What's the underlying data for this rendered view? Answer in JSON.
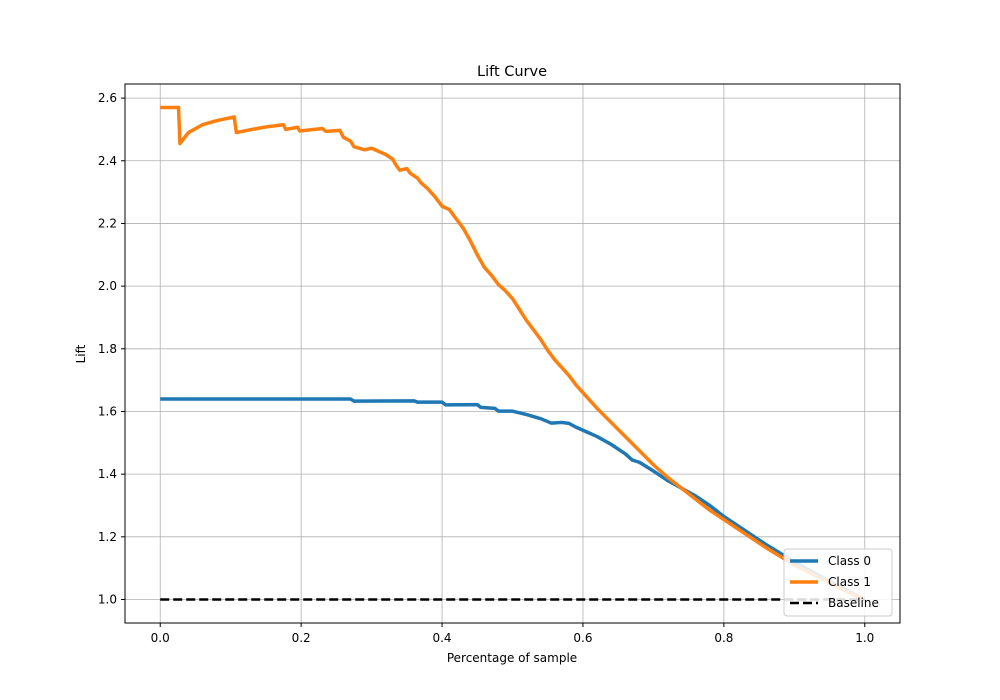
{
  "chart_data": {
    "type": "line",
    "title": "Lift Curve",
    "xlabel": "Percentage of sample",
    "ylabel": "Lift",
    "xlim": [
      -0.05,
      1.05
    ],
    "ylim": [
      0.925,
      2.645
    ],
    "xticks": [
      0.0,
      0.2,
      0.4,
      0.6,
      0.8,
      1.0
    ],
    "xtick_labels": [
      "0.0",
      "0.2",
      "0.4",
      "0.6",
      "0.8",
      "1.0"
    ],
    "yticks": [
      1.0,
      1.2,
      1.4,
      1.6,
      1.8,
      2.0,
      2.2,
      2.4,
      2.6
    ],
    "ytick_labels": [
      "1.0",
      "1.2",
      "1.4",
      "1.6",
      "1.8",
      "2.0",
      "2.2",
      "2.4",
      "2.6"
    ],
    "grid": true,
    "legend_position": "lower right",
    "series": [
      {
        "name": "Class 0",
        "color": "#1f77b4",
        "style": "solid",
        "points": [
          [
            0.0,
            1.64
          ],
          [
            0.1,
            1.64
          ],
          [
            0.2,
            1.64
          ],
          [
            0.27,
            1.64
          ],
          [
            0.275,
            1.633
          ],
          [
            0.36,
            1.634
          ],
          [
            0.365,
            1.63
          ],
          [
            0.4,
            1.63
          ],
          [
            0.405,
            1.621
          ],
          [
            0.45,
            1.622
          ],
          [
            0.455,
            1.613
          ],
          [
            0.475,
            1.61
          ],
          [
            0.48,
            1.601
          ],
          [
            0.5,
            1.601
          ],
          [
            0.52,
            1.59
          ],
          [
            0.54,
            1.577
          ],
          [
            0.555,
            1.563
          ],
          [
            0.57,
            1.565
          ],
          [
            0.58,
            1.562
          ],
          [
            0.59,
            1.55
          ],
          [
            0.6,
            1.54
          ],
          [
            0.61,
            1.53
          ],
          [
            0.62,
            1.52
          ],
          [
            0.64,
            1.495
          ],
          [
            0.66,
            1.465
          ],
          [
            0.67,
            1.445
          ],
          [
            0.68,
            1.438
          ],
          [
            0.7,
            1.41
          ],
          [
            0.72,
            1.38
          ],
          [
            0.74,
            1.355
          ],
          [
            0.76,
            1.33
          ],
          [
            0.78,
            1.3
          ],
          [
            0.8,
            1.265
          ],
          [
            0.83,
            1.22
          ],
          [
            0.86,
            1.175
          ],
          [
            0.9,
            1.12
          ],
          [
            0.94,
            1.07
          ],
          [
            0.97,
            1.035
          ],
          [
            1.0,
            1.0
          ]
        ]
      },
      {
        "name": "Class 1",
        "color": "#ff7f0e",
        "style": "solid",
        "points": [
          [
            0.0,
            2.57
          ],
          [
            0.026,
            2.57
          ],
          [
            0.028,
            2.455
          ],
          [
            0.04,
            2.49
          ],
          [
            0.06,
            2.515
          ],
          [
            0.08,
            2.528
          ],
          [
            0.105,
            2.54
          ],
          [
            0.108,
            2.49
          ],
          [
            0.13,
            2.5
          ],
          [
            0.15,
            2.508
          ],
          [
            0.175,
            2.515
          ],
          [
            0.178,
            2.5
          ],
          [
            0.195,
            2.507
          ],
          [
            0.198,
            2.495
          ],
          [
            0.23,
            2.503
          ],
          [
            0.235,
            2.494
          ],
          [
            0.255,
            2.497
          ],
          [
            0.26,
            2.475
          ],
          [
            0.27,
            2.463
          ],
          [
            0.275,
            2.445
          ],
          [
            0.29,
            2.435
          ],
          [
            0.3,
            2.44
          ],
          [
            0.31,
            2.43
          ],
          [
            0.32,
            2.42
          ],
          [
            0.33,
            2.405
          ],
          [
            0.335,
            2.385
          ],
          [
            0.34,
            2.37
          ],
          [
            0.35,
            2.375
          ],
          [
            0.355,
            2.36
          ],
          [
            0.365,
            2.345
          ],
          [
            0.37,
            2.33
          ],
          [
            0.38,
            2.31
          ],
          [
            0.39,
            2.285
          ],
          [
            0.4,
            2.255
          ],
          [
            0.41,
            2.245
          ],
          [
            0.42,
            2.215
          ],
          [
            0.43,
            2.185
          ],
          [
            0.44,
            2.145
          ],
          [
            0.45,
            2.1
          ],
          [
            0.46,
            2.06
          ],
          [
            0.47,
            2.035
          ],
          [
            0.48,
            2.005
          ],
          [
            0.49,
            1.985
          ],
          [
            0.5,
            1.96
          ],
          [
            0.51,
            1.925
          ],
          [
            0.52,
            1.89
          ],
          [
            0.53,
            1.86
          ],
          [
            0.54,
            1.83
          ],
          [
            0.55,
            1.795
          ],
          [
            0.56,
            1.765
          ],
          [
            0.57,
            1.74
          ],
          [
            0.58,
            1.715
          ],
          [
            0.59,
            1.685
          ],
          [
            0.6,
            1.66
          ],
          [
            0.62,
            1.61
          ],
          [
            0.64,
            1.565
          ],
          [
            0.66,
            1.52
          ],
          [
            0.68,
            1.475
          ],
          [
            0.7,
            1.43
          ],
          [
            0.72,
            1.39
          ],
          [
            0.74,
            1.355
          ],
          [
            0.76,
            1.32
          ],
          [
            0.78,
            1.285
          ],
          [
            0.8,
            1.255
          ],
          [
            0.83,
            1.21
          ],
          [
            0.86,
            1.165
          ],
          [
            0.9,
            1.11
          ],
          [
            0.94,
            1.065
          ],
          [
            0.97,
            1.03
          ],
          [
            1.0,
            1.0
          ]
        ]
      },
      {
        "name": "Baseline",
        "color": "#000000",
        "style": "dashed",
        "points": [
          [
            0.0,
            1.0
          ],
          [
            1.0,
            1.0
          ]
        ]
      }
    ]
  }
}
